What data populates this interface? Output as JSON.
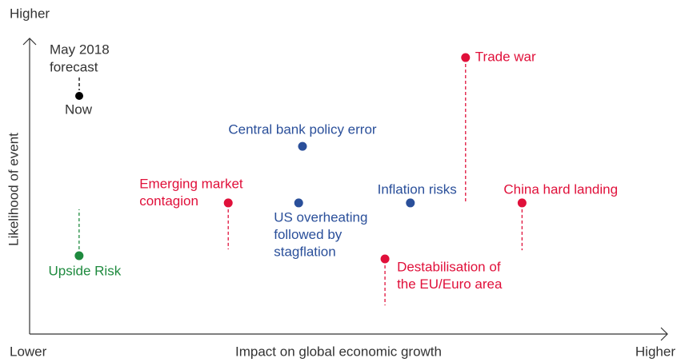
{
  "chart_data": {
    "type": "scatter",
    "x_label": "Impact on global economic growth",
    "y_label": "Likelihood of event",
    "xlim": [
      0,
      100
    ],
    "ylim": [
      0,
      100
    ],
    "xticks": [
      {
        "value": 0,
        "label": "Lower"
      },
      {
        "value": 100,
        "label": "Higher"
      }
    ],
    "yticks": [
      {
        "value": 100,
        "label": "Higher"
      }
    ],
    "legend": {
      "previous": [
        "May 2018",
        "forecast"
      ],
      "current": "Now",
      "color": "#000000"
    },
    "points": [
      {
        "label_lines": [
          "Trade war"
        ],
        "color": "#e0103a",
        "x": 68.7,
        "y": 95.3,
        "prev_y": 44.9
      },
      {
        "label_lines": [
          "China hard landing"
        ],
        "color": "#e0103a",
        "x": 77.6,
        "y": 45.2,
        "prev_y": 28.9
      },
      {
        "label_lines": [
          "Inflation risks"
        ],
        "color": "#2a4f9a",
        "x": 60.0,
        "y": 45.2,
        "prev_y": null
      },
      {
        "label_lines": [
          "Central bank policy error"
        ],
        "color": "#2a4f9a",
        "x": 43.0,
        "y": 64.7,
        "prev_y": null
      },
      {
        "label_lines": [
          "US overheating",
          "followed by",
          "stagflation"
        ],
        "color": "#2a4f9a",
        "x": 42.4,
        "y": 45.2,
        "prev_y": null
      },
      {
        "label_lines": [
          "Emerging market",
          "contagion"
        ],
        "color": "#e0103a",
        "x": 31.3,
        "y": 45.2,
        "prev_y": 29.2
      },
      {
        "label_lines": [
          "Destabilisation of",
          "the EU/Euro area"
        ],
        "color": "#e0103a",
        "x": 56.0,
        "y": 25.9,
        "prev_y": 9.9
      },
      {
        "label_lines": [
          "Upside Risk"
        ],
        "color": "#1e8a3e",
        "x": 7.8,
        "y": 27.0,
        "prev_y": 43.0
      }
    ]
  }
}
